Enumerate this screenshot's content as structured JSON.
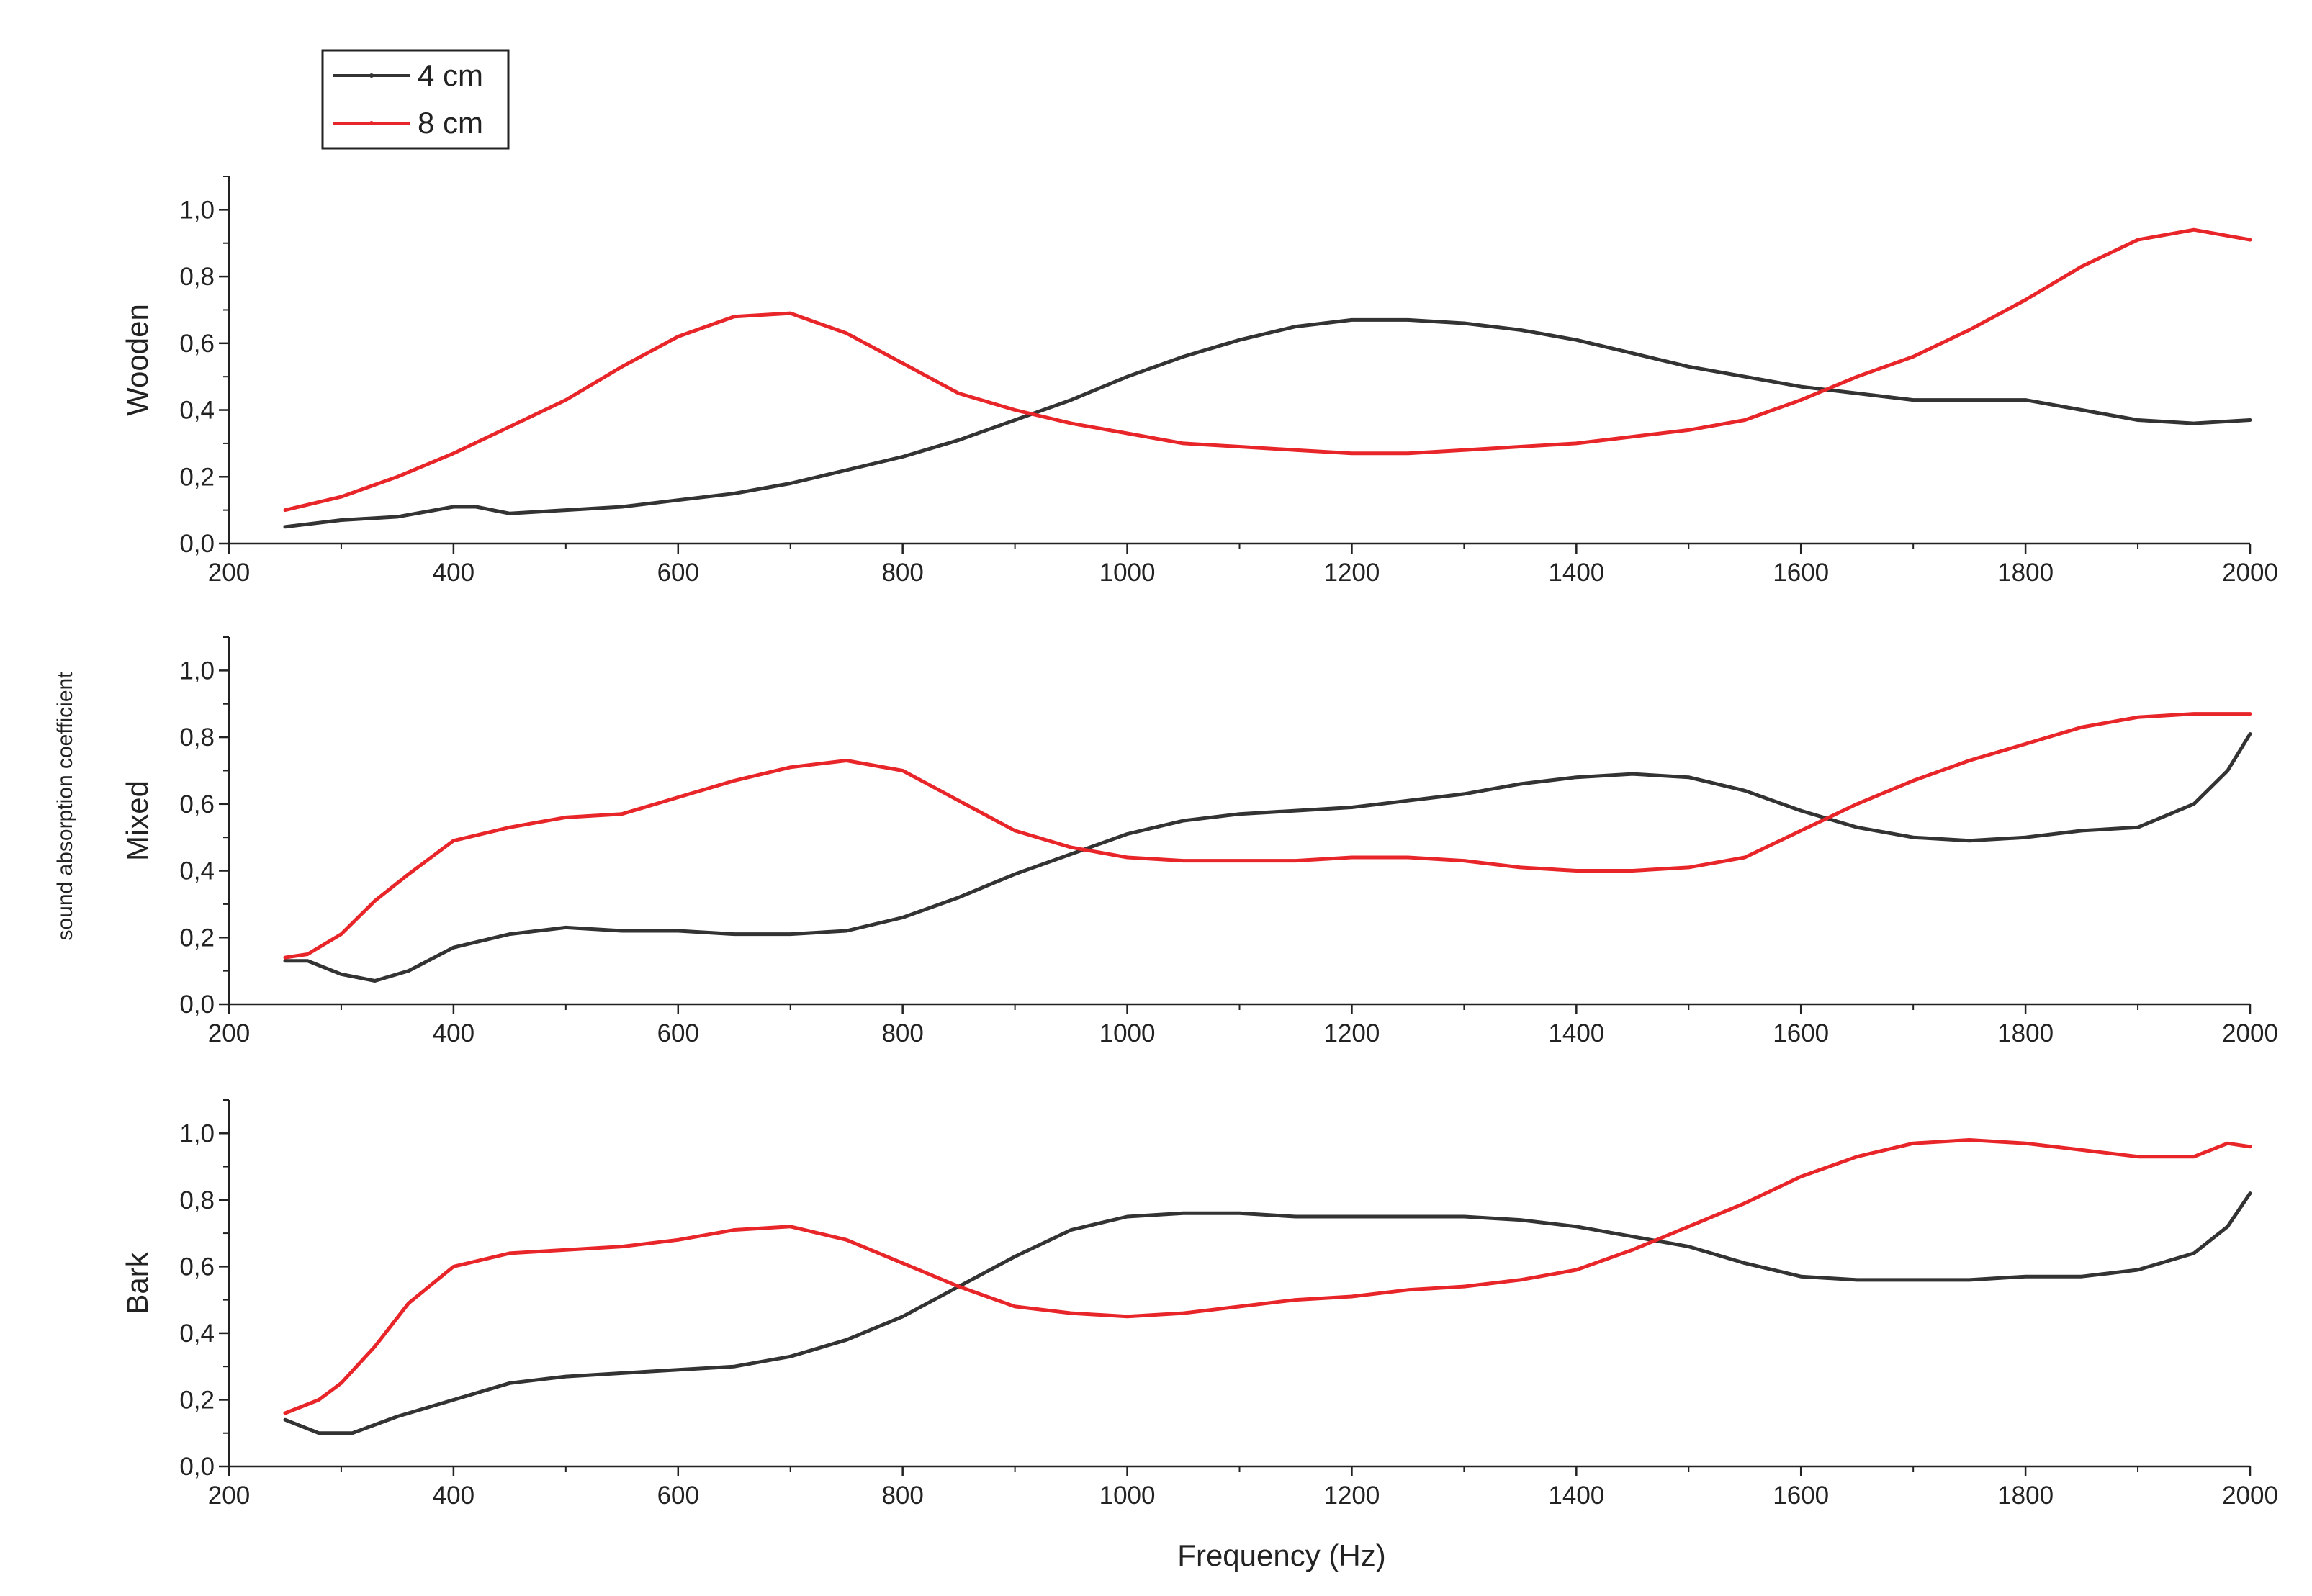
{
  "chart_data": {
    "type": "line",
    "xlabel": "Frequency (Hz)",
    "ylabel": "sound absorption coefficient",
    "xlim": [
      200,
      2000
    ],
    "ylim": [
      0,
      1.1
    ],
    "xticks": [
      200,
      400,
      600,
      800,
      1000,
      1200,
      1400,
      1600,
      1800,
      2000
    ],
    "yticks": [
      "0,0",
      "0,2",
      "0,4",
      "0,6",
      "0,8",
      "1,0"
    ],
    "grid": false,
    "legend": {
      "position": "top-left",
      "entries": [
        {
          "label": "4 cm",
          "color": "#333333"
        },
        {
          "label": "8 cm",
          "color": "#e8262a"
        }
      ]
    },
    "panels": [
      {
        "ylabel": "Wooden",
        "series": [
          {
            "name": "4 cm",
            "color": "#333333",
            "x": [
              250,
              300,
              350,
              400,
              420,
              450,
              500,
              550,
              600,
              650,
              700,
              750,
              800,
              850,
              900,
              950,
              1000,
              1050,
              1100,
              1150,
              1200,
              1250,
              1300,
              1350,
              1400,
              1450,
              1500,
              1550,
              1600,
              1650,
              1700,
              1750,
              1800,
              1850,
              1900,
              1950,
              2000
            ],
            "y": [
              0.05,
              0.07,
              0.08,
              0.11,
              0.11,
              0.09,
              0.1,
              0.11,
              0.13,
              0.15,
              0.18,
              0.22,
              0.26,
              0.31,
              0.37,
              0.43,
              0.5,
              0.56,
              0.61,
              0.65,
              0.67,
              0.67,
              0.66,
              0.64,
              0.61,
              0.57,
              0.53,
              0.5,
              0.47,
              0.45,
              0.43,
              0.43,
              0.43,
              0.4,
              0.37,
              0.36,
              0.37
            ]
          },
          {
            "name": "8 cm",
            "color": "#e8262a",
            "x": [
              250,
              300,
              350,
              400,
              450,
              500,
              550,
              600,
              650,
              700,
              750,
              800,
              850,
              900,
              950,
              1000,
              1050,
              1100,
              1150,
              1200,
              1250,
              1300,
              1350,
              1400,
              1450,
              1500,
              1550,
              1600,
              1650,
              1700,
              1750,
              1800,
              1850,
              1900,
              1950,
              2000
            ],
            "y": [
              0.1,
              0.14,
              0.2,
              0.27,
              0.35,
              0.43,
              0.53,
              0.62,
              0.68,
              0.69,
              0.63,
              0.54,
              0.45,
              0.4,
              0.36,
              0.33,
              0.3,
              0.29,
              0.28,
              0.27,
              0.27,
              0.28,
              0.29,
              0.3,
              0.32,
              0.34,
              0.37,
              0.43,
              0.5,
              0.56,
              0.64,
              0.73,
              0.83,
              0.91,
              0.94,
              0.91
            ]
          }
        ]
      },
      {
        "ylabel": "Mixed",
        "series": [
          {
            "name": "4 cm",
            "color": "#333333",
            "x": [
              250,
              270,
              300,
              330,
              360,
              400,
              450,
              500,
              550,
              600,
              650,
              700,
              750,
              800,
              850,
              900,
              950,
              1000,
              1050,
              1100,
              1150,
              1200,
              1250,
              1300,
              1350,
              1400,
              1450,
              1500,
              1550,
              1600,
              1650,
              1700,
              1750,
              1800,
              1850,
              1900,
              1950,
              1980,
              2000
            ],
            "y": [
              0.13,
              0.13,
              0.09,
              0.07,
              0.1,
              0.17,
              0.21,
              0.23,
              0.22,
              0.22,
              0.21,
              0.21,
              0.22,
              0.26,
              0.32,
              0.39,
              0.45,
              0.51,
              0.55,
              0.57,
              0.58,
              0.59,
              0.61,
              0.63,
              0.66,
              0.68,
              0.69,
              0.68,
              0.64,
              0.58,
              0.53,
              0.5,
              0.49,
              0.5,
              0.52,
              0.53,
              0.6,
              0.7,
              0.81
            ]
          },
          {
            "name": "8 cm",
            "color": "#e8262a",
            "x": [
              250,
              270,
              300,
              330,
              360,
              400,
              450,
              500,
              550,
              600,
              650,
              700,
              750,
              800,
              850,
              900,
              950,
              1000,
              1050,
              1100,
              1150,
              1200,
              1250,
              1300,
              1350,
              1400,
              1450,
              1500,
              1550,
              1600,
              1650,
              1700,
              1750,
              1800,
              1850,
              1900,
              1950,
              2000
            ],
            "y": [
              0.14,
              0.15,
              0.21,
              0.31,
              0.39,
              0.49,
              0.53,
              0.56,
              0.57,
              0.62,
              0.67,
              0.71,
              0.73,
              0.7,
              0.61,
              0.52,
              0.47,
              0.44,
              0.43,
              0.43,
              0.43,
              0.44,
              0.44,
              0.43,
              0.41,
              0.4,
              0.4,
              0.41,
              0.44,
              0.52,
              0.6,
              0.67,
              0.73,
              0.78,
              0.83,
              0.86,
              0.87,
              0.87
            ]
          }
        ]
      },
      {
        "ylabel": "Bark",
        "series": [
          {
            "name": "4 cm",
            "color": "#333333",
            "x": [
              250,
              280,
              310,
              350,
              400,
              450,
              500,
              550,
              600,
              650,
              700,
              750,
              800,
              850,
              900,
              950,
              1000,
              1050,
              1100,
              1150,
              1200,
              1250,
              1300,
              1350,
              1400,
              1450,
              1500,
              1550,
              1600,
              1650,
              1700,
              1750,
              1800,
              1850,
              1900,
              1950,
              1980,
              2000
            ],
            "y": [
              0.14,
              0.1,
              0.1,
              0.15,
              0.2,
              0.25,
              0.27,
              0.28,
              0.29,
              0.3,
              0.33,
              0.38,
              0.45,
              0.54,
              0.63,
              0.71,
              0.75,
              0.76,
              0.76,
              0.75,
              0.75,
              0.75,
              0.75,
              0.74,
              0.72,
              0.69,
              0.66,
              0.61,
              0.57,
              0.56,
              0.56,
              0.56,
              0.57,
              0.57,
              0.59,
              0.64,
              0.72,
              0.82
            ]
          },
          {
            "name": "8 cm",
            "color": "#e8262a",
            "x": [
              250,
              280,
              300,
              330,
              360,
              400,
              450,
              500,
              550,
              600,
              650,
              700,
              750,
              800,
              850,
              900,
              950,
              1000,
              1050,
              1100,
              1150,
              1200,
              1250,
              1300,
              1350,
              1400,
              1450,
              1500,
              1550,
              1600,
              1650,
              1700,
              1750,
              1800,
              1850,
              1900,
              1950,
              1980,
              2000
            ],
            "y": [
              0.16,
              0.2,
              0.25,
              0.36,
              0.49,
              0.6,
              0.64,
              0.65,
              0.66,
              0.68,
              0.71,
              0.72,
              0.68,
              0.61,
              0.54,
              0.48,
              0.46,
              0.45,
              0.46,
              0.48,
              0.5,
              0.51,
              0.53,
              0.54,
              0.56,
              0.59,
              0.65,
              0.72,
              0.79,
              0.87,
              0.93,
              0.97,
              0.98,
              0.97,
              0.95,
              0.93,
              0.93,
              0.97,
              0.96
            ]
          }
        ]
      }
    ]
  }
}
